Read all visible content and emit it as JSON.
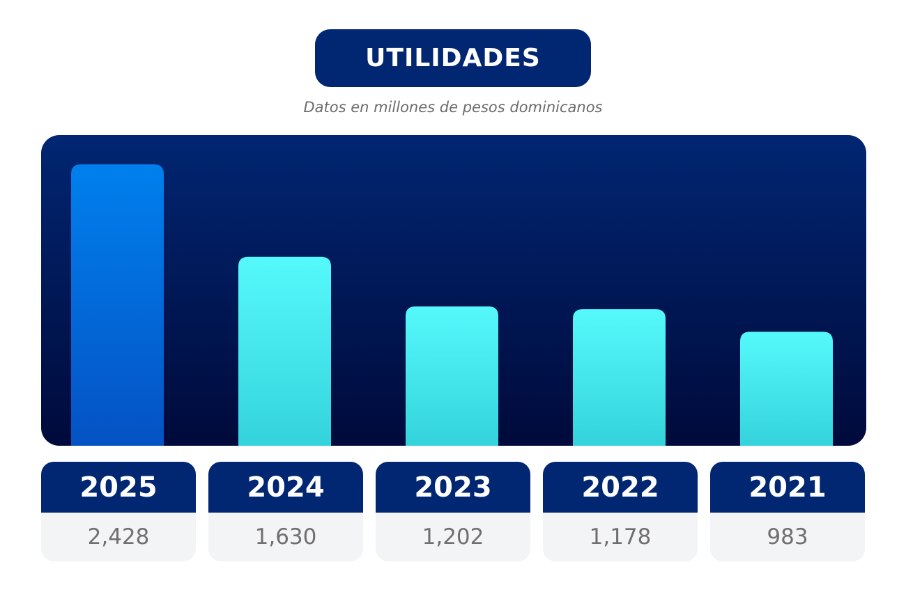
{
  "header": {
    "title": "UTILIDADES",
    "subtitle": "Datos en millones de pesos dominicanos"
  },
  "colors": {
    "title_bg": "#012672",
    "panel_top": "#012672",
    "panel_bottom": "#000a3b",
    "bar_highlight_top": "#0080ed",
    "bar_highlight_bottom": "#0552c4",
    "bar_top": "#55f9fb",
    "bar_bottom": "#34d3dc",
    "card_head_bg": "#012672",
    "card_body_bg": "#f3f4f5"
  },
  "chart_data": {
    "type": "bar",
    "title": "UTILIDADES",
    "subtitle": "Datos en millones de pesos dominicanos",
    "categories": [
      "2025",
      "2024",
      "2023",
      "2022",
      "2021"
    ],
    "values": [
      2428,
      1630,
      1202,
      1178,
      983
    ],
    "value_labels": [
      "2,428",
      "1,630",
      "1,202",
      "1,178",
      "983"
    ],
    "highlight_index": 0,
    "xlabel": "",
    "ylabel": "",
    "ylim": [
      0,
      2428
    ],
    "grid": false,
    "legend": "none"
  }
}
